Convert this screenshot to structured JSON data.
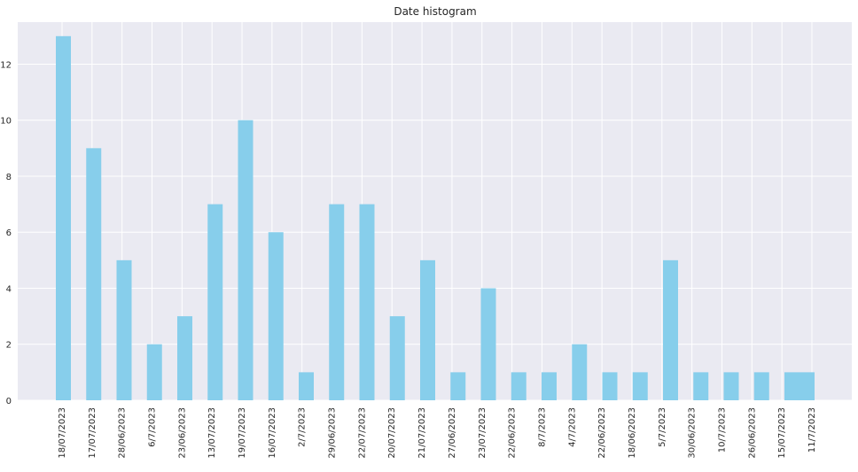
{
  "chart_data": {
    "type": "bar",
    "title": "Date histogram",
    "xlabel": "",
    "ylabel": "",
    "ylim": [
      0,
      13.5
    ],
    "yticks": [
      0,
      2,
      4,
      6,
      8,
      10,
      12
    ],
    "grid": true,
    "bar_color": "#87ceeb",
    "background_color": "#eaeaf2",
    "grid_color": "#ffffff",
    "categories": [
      "18/07/2023",
      "17/07/2023",
      "28/06/2023",
      "6/7/2023",
      "23/06/2023",
      "13/07/2023",
      "19/07/2023",
      "16/07/2023",
      "2/7/2023",
      "29/06/2023",
      "22/07/2023",
      "20/07/2023",
      "21/07/2023",
      "27/06/2023",
      "23/07/2023",
      "22/06/2023",
      "8/7/2023",
      "4/7/2023",
      "22/06/2023",
      "18/06/2023",
      "5/7/2023",
      "30/06/2023",
      "10/7/2023",
      "26/06/2023",
      "15/07/2023",
      "11/7/2023"
    ],
    "values": [
      13,
      9,
      5,
      2,
      3,
      7,
      10,
      6,
      1,
      7,
      7,
      3,
      5,
      1,
      4,
      1,
      1,
      2,
      1,
      1,
      5,
      1,
      1,
      1,
      1,
      1
    ]
  }
}
